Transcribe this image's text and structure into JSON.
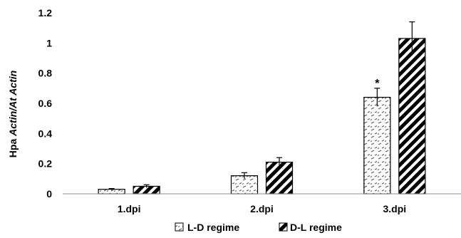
{
  "chart_data": {
    "type": "bar",
    "title": "",
    "xlabel": "",
    "ylabel_prefix": "Hpa ",
    "ylabel_italic": "Actin/At Actin",
    "categories": [
      "1.dpi",
      "2.dpi",
      "3.dpi"
    ],
    "ylim": [
      0,
      1.2
    ],
    "yticks": [
      0,
      0.2,
      0.4,
      0.6,
      0.8,
      1,
      1.2
    ],
    "grid": false,
    "legend_position": "bottom",
    "series": [
      {
        "name": "L-D regime",
        "pattern": "dashed-hatch",
        "values": [
          0.03,
          0.12,
          0.64
        ],
        "errors": [
          0.005,
          0.02,
          0.06
        ]
      },
      {
        "name": "D-L regime",
        "pattern": "diagonal-stripes",
        "values": [
          0.05,
          0.21,
          1.03
        ],
        "errors": [
          0.01,
          0.03,
          0.11
        ]
      }
    ],
    "annotations": [
      {
        "series": 0,
        "category": 2,
        "text": "*"
      }
    ]
  }
}
